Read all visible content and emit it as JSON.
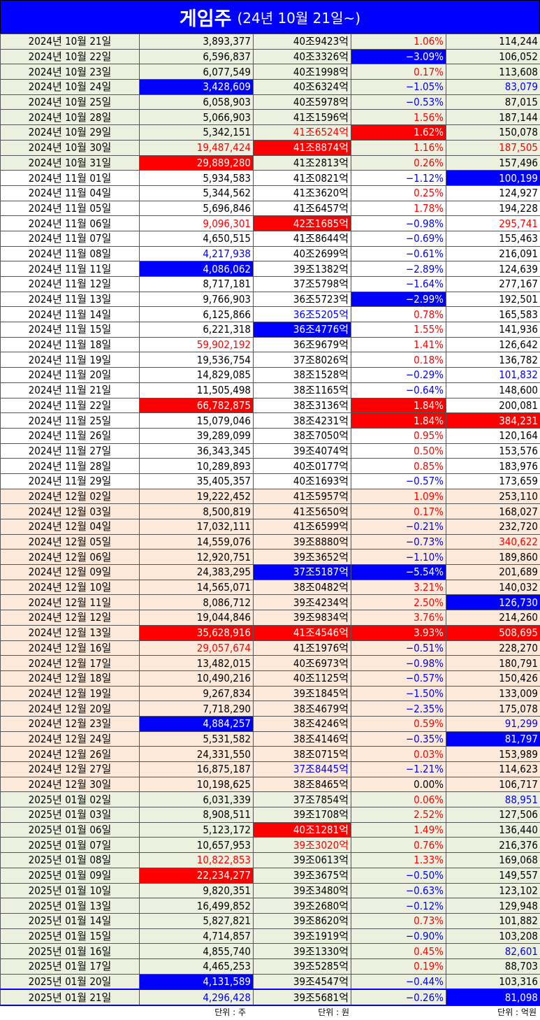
{
  "header": {
    "title": "게임주",
    "subtitle": "(24년 10월 21일~)"
  },
  "rows": [
    {
      "date": "2024년 10월 21일",
      "volume": "3,893,377",
      "mcap": "40조9423억",
      "change": "1.06%",
      "amount": "114,244",
      "group": "oct"
    },
    {
      "date": "2024년 10월 22일",
      "volume": "6,596,837",
      "mcap": "40조3326억",
      "change": "−3.09%",
      "amount": "106,052",
      "group": "oct",
      "hl": {
        "change": "hi-blue"
      }
    },
    {
      "date": "2024년 10월 23일",
      "volume": "6,077,549",
      "mcap": "40조1998억",
      "change": "0.17%",
      "amount": "113,608",
      "group": "oct"
    },
    {
      "date": "2024년 10월 24일",
      "volume": "3,428,609",
      "mcap": "40조6324억",
      "change": "−1.05%",
      "amount": "83,079",
      "group": "oct",
      "hl": {
        "volume": "hi-blue",
        "amount": "txt-blue"
      }
    },
    {
      "date": "2024년 10월 25일",
      "volume": "6,058,903",
      "mcap": "40조5978억",
      "change": "−0.53%",
      "amount": "87,015",
      "group": "oct"
    },
    {
      "date": "2024년 10월 28일",
      "volume": "5,066,903",
      "mcap": "41조1596억",
      "change": "1.56%",
      "amount": "187,144",
      "group": "oct"
    },
    {
      "date": "2024년 10월 29일",
      "volume": "5,342,151",
      "mcap": "41조6524억",
      "change": "1.62%",
      "amount": "150,078",
      "group": "oct",
      "hl": {
        "mcap": "txt-red",
        "change": "hi-red"
      }
    },
    {
      "date": "2024년 10월 30일",
      "volume": "19,487,424",
      "mcap": "41조8874억",
      "change": "1.16%",
      "amount": "187,505",
      "group": "oct",
      "hl": {
        "volume": "txt-red",
        "mcap": "hi-red",
        "amount": "txt-red"
      }
    },
    {
      "date": "2024년 10월 31일",
      "volume": "29,889,280",
      "mcap": "41조2813억",
      "change": "0.26%",
      "amount": "157,496",
      "group": "oct",
      "hl": {
        "volume": "hi-red"
      }
    },
    {
      "date": "2024년 11월 01일",
      "volume": "5,934,583",
      "mcap": "41조0821억",
      "change": "−1.12%",
      "amount": "100,199",
      "group": "nov",
      "hl": {
        "amount": "hi-blue"
      }
    },
    {
      "date": "2024년 11월 04일",
      "volume": "5,344,562",
      "mcap": "41조3620억",
      "change": "0.25%",
      "amount": "124,927",
      "group": "nov"
    },
    {
      "date": "2024년 11월 05일",
      "volume": "5,696,846",
      "mcap": "41조6457억",
      "change": "1.78%",
      "amount": "194,228",
      "group": "nov"
    },
    {
      "date": "2024년 11월 06일",
      "volume": "9,096,301",
      "mcap": "42조1685억",
      "change": "−0.98%",
      "amount": "295,741",
      "group": "nov",
      "hl": {
        "volume": "txt-red",
        "mcap": "hi-red",
        "amount": "txt-red"
      }
    },
    {
      "date": "2024년 11월 07일",
      "volume": "4,650,515",
      "mcap": "41조8644억",
      "change": "−0.69%",
      "amount": "155,463",
      "group": "nov"
    },
    {
      "date": "2024년 11월 08일",
      "volume": "4,217,938",
      "mcap": "40조2699억",
      "change": "−0.61%",
      "amount": "216,091",
      "group": "nov",
      "hl": {
        "volume": "txt-blue"
      }
    },
    {
      "date": "2024년 11월 11일",
      "volume": "4,086,062",
      "mcap": "39조1382억",
      "change": "−2.89%",
      "amount": "124,639",
      "group": "nov",
      "hl": {
        "volume": "hi-blue"
      }
    },
    {
      "date": "2024년 11월 12일",
      "volume": "8,717,181",
      "mcap": "37조5798억",
      "change": "−1.64%",
      "amount": "277,167",
      "group": "nov"
    },
    {
      "date": "2024년 11월 13일",
      "volume": "9,766,903",
      "mcap": "36조5723억",
      "change": "−2.99%",
      "amount": "192,501",
      "group": "nov",
      "hl": {
        "change": "hi-blue"
      }
    },
    {
      "date": "2024년 11월 14일",
      "volume": "6,125,866",
      "mcap": "36조5205억",
      "change": "0.78%",
      "amount": "165,583",
      "group": "nov",
      "hl": {
        "mcap": "txt-blue"
      }
    },
    {
      "date": "2024년 11월 15일",
      "volume": "6,221,318",
      "mcap": "36조4776억",
      "change": "1.55%",
      "amount": "141,936",
      "group": "nov",
      "hl": {
        "mcap": "hi-blue"
      }
    },
    {
      "date": "2024년 11월 18일",
      "volume": "59,902,192",
      "mcap": "36조9679억",
      "change": "1.41%",
      "amount": "126,642",
      "group": "nov",
      "hl": {
        "volume": "txt-red"
      }
    },
    {
      "date": "2024년 11월 19일",
      "volume": "19,536,754",
      "mcap": "37조8026억",
      "change": "0.18%",
      "amount": "136,782",
      "group": "nov"
    },
    {
      "date": "2024년 11월 20일",
      "volume": "14,829,085",
      "mcap": "38조1528억",
      "change": "−0.29%",
      "amount": "101,832",
      "group": "nov",
      "hl": {
        "amount": "txt-blue"
      }
    },
    {
      "date": "2024년 11월 21일",
      "volume": "11,505,498",
      "mcap": "38조1165억",
      "change": "−0.64%",
      "amount": "148,600",
      "group": "nov"
    },
    {
      "date": "2024년 11월 22일",
      "volume": "66,782,875",
      "mcap": "38조3136억",
      "change": "1.84%",
      "amount": "200,081",
      "group": "nov",
      "hl": {
        "volume": "hi-red",
        "change": "hi-red"
      }
    },
    {
      "date": "2024년 11월 25일",
      "volume": "15,079,046",
      "mcap": "38조4231억",
      "change": "1.84%",
      "amount": "384,231",
      "group": "nov",
      "hl": {
        "change": "hi-red",
        "amount": "hi-red"
      }
    },
    {
      "date": "2024년 11월 26일",
      "volume": "39,289,099",
      "mcap": "38조7050억",
      "change": "0.95%",
      "amount": "120,164",
      "group": "nov"
    },
    {
      "date": "2024년 11월 27일",
      "volume": "36,343,345",
      "mcap": "39조4074억",
      "change": "0.50%",
      "amount": "153,576",
      "group": "nov"
    },
    {
      "date": "2024년 11월 28일",
      "volume": "10,289,893",
      "mcap": "40조0177억",
      "change": "0.85%",
      "amount": "183,976",
      "group": "nov"
    },
    {
      "date": "2024년 11월 29일",
      "volume": "35,405,357",
      "mcap": "40조1693억",
      "change": "−0.57%",
      "amount": "173,659",
      "group": "nov"
    },
    {
      "date": "2024년 12월 02일",
      "volume": "19,222,452",
      "mcap": "41조5957억",
      "change": "1.09%",
      "amount": "253,110",
      "group": "dec"
    },
    {
      "date": "2024년 12월 03일",
      "volume": "8,500,819",
      "mcap": "41조5650억",
      "change": "0.17%",
      "amount": "168,027",
      "group": "dec"
    },
    {
      "date": "2024년 12월 04일",
      "volume": "17,032,111",
      "mcap": "41조6599억",
      "change": "−0.21%",
      "amount": "232,720",
      "group": "dec"
    },
    {
      "date": "2024년 12월 05일",
      "volume": "14,559,076",
      "mcap": "39조8880억",
      "change": "−0.73%",
      "amount": "340,622",
      "group": "dec",
      "hl": {
        "amount": "txt-red"
      }
    },
    {
      "date": "2024년 12월 06일",
      "volume": "12,920,751",
      "mcap": "39조3652억",
      "change": "−1.10%",
      "amount": "189,860",
      "group": "dec"
    },
    {
      "date": "2024년 12월 09일",
      "volume": "24,383,295",
      "mcap": "37조5187억",
      "change": "−5.54%",
      "amount": "201,689",
      "group": "dec",
      "hl": {
        "mcap": "hi-blue",
        "change": "hi-blue"
      }
    },
    {
      "date": "2024년 12월 10일",
      "volume": "14,565,071",
      "mcap": "38조0482억",
      "change": "3.21%",
      "amount": "140,032",
      "group": "dec"
    },
    {
      "date": "2024년 12월 11일",
      "volume": "8,086,712",
      "mcap": "39조4234억",
      "change": "2.50%",
      "amount": "126,730",
      "group": "dec",
      "hl": {
        "amount": "hi-blue"
      }
    },
    {
      "date": "2024년 12월 12일",
      "volume": "19,044,846",
      "mcap": "39조9834억",
      "change": "3.76%",
      "amount": "214,260",
      "group": "dec"
    },
    {
      "date": "2024년 12월 13일",
      "volume": "35,628,916",
      "mcap": "41조4546억",
      "change": "3.93%",
      "amount": "508,695",
      "group": "dec",
      "hl": {
        "volume": "hi-red",
        "mcap": "hi-red",
        "change": "hi-red",
        "amount": "hi-red"
      }
    },
    {
      "date": "2024년 12월 16일",
      "volume": "29,057,674",
      "mcap": "41조1976억",
      "change": "−0.51%",
      "amount": "228,270",
      "group": "dec",
      "hl": {
        "volume": "txt-red"
      }
    },
    {
      "date": "2024년 12월 17일",
      "volume": "13,482,015",
      "mcap": "40조6973억",
      "change": "−0.98%",
      "amount": "180,791",
      "group": "dec"
    },
    {
      "date": "2024년 12월 18일",
      "volume": "10,490,216",
      "mcap": "40조1125억",
      "change": "−0.57%",
      "amount": "150,426",
      "group": "dec"
    },
    {
      "date": "2024년 12월 19일",
      "volume": "9,267,834",
      "mcap": "39조1845억",
      "change": "−1.50%",
      "amount": "133,009",
      "group": "dec"
    },
    {
      "date": "2024년 12월 20일",
      "volume": "7,718,290",
      "mcap": "38조4679억",
      "change": "−2.35%",
      "amount": "175,078",
      "group": "dec"
    },
    {
      "date": "2024년 12월 23일",
      "volume": "4,884,257",
      "mcap": "38조4246억",
      "change": "0.59%",
      "amount": "91,299",
      "group": "dec",
      "hl": {
        "volume": "hi-blue",
        "amount": "txt-blue"
      }
    },
    {
      "date": "2024년 12월 24일",
      "volume": "5,531,582",
      "mcap": "38조4146억",
      "change": "−0.35%",
      "amount": "81,797",
      "group": "dec",
      "hl": {
        "amount": "hi-blue"
      }
    },
    {
      "date": "2024년 12월 26일",
      "volume": "24,331,550",
      "mcap": "38조0715억",
      "change": "0.03%",
      "amount": "153,989",
      "group": "dec"
    },
    {
      "date": "2024년 12월 27일",
      "volume": "16,875,187",
      "mcap": "37조8445억",
      "change": "−1.21%",
      "amount": "114,623",
      "group": "dec",
      "hl": {
        "mcap": "txt-blue"
      }
    },
    {
      "date": "2024년 12월 30일",
      "volume": "10,198,625",
      "mcap": "38조8465억",
      "change": "0.00%",
      "amount": "106,717",
      "group": "dec"
    },
    {
      "date": "2025년 01월 02일",
      "volume": "6,031,339",
      "mcap": "37조7854억",
      "change": "0.06%",
      "amount": "88,951",
      "group": "jan",
      "hl": {
        "amount": "txt-blue"
      }
    },
    {
      "date": "2025년 01월 03일",
      "volume": "8,908,511",
      "mcap": "39조1708억",
      "change": "2.52%",
      "amount": "127,506",
      "group": "jan"
    },
    {
      "date": "2025년 01월 06일",
      "volume": "5,123,172",
      "mcap": "40조1281억",
      "change": "1.49%",
      "amount": "136,440",
      "group": "jan",
      "hl": {
        "mcap": "hi-red"
      }
    },
    {
      "date": "2025년 01월 07일",
      "volume": "10,657,953",
      "mcap": "39조3020억",
      "change": "0.76%",
      "amount": "216,376",
      "group": "jan",
      "hl": {
        "mcap": "txt-red"
      }
    },
    {
      "date": "2025년 01월 08일",
      "volume": "10,822,853",
      "mcap": "39조0613억",
      "change": "1.33%",
      "amount": "169,068",
      "group": "jan",
      "hl": {
        "volume": "txt-red"
      }
    },
    {
      "date": "2025년 01월 09일",
      "volume": "22,234,277",
      "mcap": "39조3675억",
      "change": "−0.50%",
      "amount": "149,557",
      "group": "jan",
      "hl": {
        "volume": "hi-red"
      }
    },
    {
      "date": "2025년 01월 10일",
      "volume": "9,820,351",
      "mcap": "39조3480억",
      "change": "−0.63%",
      "amount": "123,102",
      "group": "jan"
    },
    {
      "date": "2025년 01월 13일",
      "volume": "16,499,852",
      "mcap": "39조2680억",
      "change": "−0.12%",
      "amount": "129,948",
      "group": "jan"
    },
    {
      "date": "2025년 01월 14일",
      "volume": "5,827,821",
      "mcap": "39조8620억",
      "change": "0.73%",
      "amount": "101,882",
      "group": "jan"
    },
    {
      "date": "2025년 01월 15일",
      "volume": "4,714,857",
      "mcap": "39조1919억",
      "change": "−0.90%",
      "amount": "103,208",
      "group": "jan"
    },
    {
      "date": "2025년 01월 16일",
      "volume": "4,855,740",
      "mcap": "39조1330억",
      "change": "0.45%",
      "amount": "82,601",
      "group": "jan",
      "hl": {
        "amount": "txt-blue"
      }
    },
    {
      "date": "2025년 01월 17일",
      "volume": "4,465,253",
      "mcap": "39조5285억",
      "change": "0.19%",
      "amount": "88,703",
      "group": "jan"
    },
    {
      "date": "2025년 01월 20일",
      "volume": "4,131,589",
      "mcap": "39조4547억",
      "change": "−0.44%",
      "amount": "103,316",
      "group": "jan",
      "hl": {
        "volume": "hi-blue"
      }
    },
    {
      "date": "2025년 01월 21일",
      "volume": "4,296,428",
      "mcap": "39조5681억",
      "change": "−0.26%",
      "amount": "81,098",
      "group": "jan",
      "hl": {
        "volume": "txt-blue",
        "amount": "hi-blue"
      },
      "last": true
    }
  ],
  "units": {
    "volume": "단위 : 주",
    "mcap": "단위 : 원",
    "amount": "단위 : 억원"
  },
  "colors": {
    "title_bg": "#0000ff",
    "highlight_red": "#ff0000",
    "highlight_blue": "#0000ff",
    "oct_jan_row_bg": "#ebf1de",
    "nov_row_bg": "#ffffff",
    "dec_row_bg": "#fde9d9"
  }
}
